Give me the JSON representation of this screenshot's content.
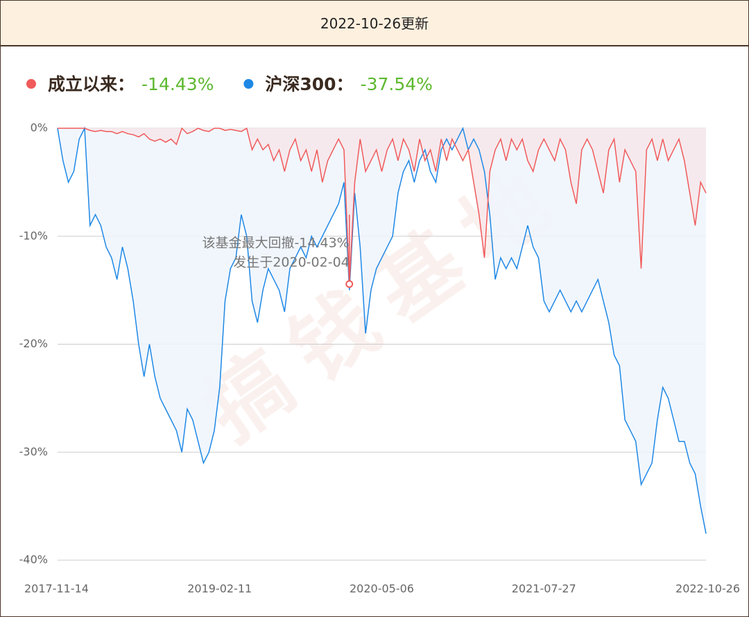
{
  "header": "2022-10-26更新",
  "chart_data": {
    "type": "line",
    "watermark": "搞钱基地",
    "categories": [
      "2017-11-14",
      null,
      null,
      null,
      null,
      null,
      null,
      null,
      null,
      null,
      null,
      null,
      null,
      null,
      null,
      null,
      null,
      null,
      null,
      null,
      null,
      null,
      null,
      null,
      null,
      null,
      null,
      null,
      null,
      null,
      "2019-02-11",
      null,
      null,
      null,
      null,
      null,
      null,
      null,
      null,
      null,
      null,
      null,
      null,
      null,
      null,
      null,
      null,
      null,
      null,
      null,
      null,
      null,
      null,
      null,
      null,
      null,
      null,
      null,
      null,
      null,
      "2020-05-06",
      null,
      null,
      null,
      null,
      null,
      null,
      null,
      null,
      null,
      null,
      null,
      null,
      null,
      null,
      null,
      null,
      null,
      null,
      null,
      null,
      null,
      null,
      null,
      null,
      null,
      null,
      null,
      null,
      null,
      "2021-07-27",
      null,
      null,
      null,
      null,
      null,
      null,
      null,
      null,
      null,
      null,
      null,
      null,
      null,
      null,
      null,
      null,
      null,
      null,
      null,
      null,
      null,
      null,
      null,
      null,
      null,
      null,
      null,
      null,
      null,
      "2022-10-26"
    ],
    "series": [
      {
        "name": "成立以来：",
        "summary": "-14.43%",
        "color": "#f05a5a",
        "fill": "#f7e6ea",
        "values": [
          0,
          0,
          0,
          0,
          0,
          0,
          -0.2,
          -0.3,
          -0.2,
          -0.3,
          -0.3,
          -0.5,
          -0.3,
          -0.5,
          -0.6,
          -0.8,
          -0.5,
          -1,
          -1.2,
          -1,
          -1.3,
          -1,
          -1.5,
          0,
          -0.5,
          -0.3,
          0,
          -0.2,
          -0.3,
          0,
          0,
          -0.2,
          -0.1,
          -0.2,
          -0.3,
          0,
          -2,
          -1,
          -2,
          -1.5,
          -3,
          -2,
          -4,
          -2,
          -1,
          -3,
          -2,
          -4,
          -2,
          -5,
          -3,
          -2,
          -1,
          -2,
          -14.43,
          -5,
          -1,
          -4,
          -3,
          -2,
          -4,
          -2,
          -1,
          -3,
          -1,
          -2,
          -4,
          -1,
          -3,
          -2,
          -4,
          -1,
          -3,
          -1,
          -2,
          -3,
          -2,
          -5,
          -8,
          -12,
          -4,
          -2,
          -1,
          -3,
          -1,
          -2,
          -1,
          -3,
          -4,
          -2,
          -1,
          -2,
          -3,
          -1,
          -2,
          -5,
          -7,
          -2,
          -1,
          -2,
          -4,
          -6,
          -2,
          -1,
          -5,
          -2,
          -3,
          -4,
          -13,
          -2,
          -1,
          -3,
          -1,
          -3,
          -2,
          -1,
          -3,
          -6,
          -9,
          -5,
          -6
        ]
      },
      {
        "name": "沪深300：",
        "summary": "-37.54%",
        "color": "#1e88e5",
        "fill": "#eef5fd",
        "values": [
          0,
          -3,
          -5,
          -4,
          -1,
          0,
          -9,
          -8,
          -9,
          -11,
          -12,
          -14,
          -11,
          -13,
          -16,
          -20,
          -23,
          -20,
          -23,
          -25,
          -26,
          -27,
          -28,
          -30,
          -26,
          -27,
          -29,
          -31,
          -30,
          -28,
          -24,
          -16,
          -13,
          -12,
          -8,
          -10,
          -16,
          -18,
          -15,
          -13,
          -14,
          -15,
          -17,
          -13,
          -12,
          -11,
          -12,
          -10,
          -11,
          -10,
          -9,
          -8,
          -7,
          -5,
          -15,
          -6,
          -11,
          -19,
          -15,
          -13,
          -12,
          -11,
          -10,
          -6,
          -4,
          -3,
          -5,
          -3,
          -2,
          -4,
          -5,
          -2,
          -1,
          -2,
          -1,
          0,
          -2,
          -1,
          -2,
          -4,
          -8,
          -14,
          -12,
          -13,
          -12,
          -13,
          -11,
          -9,
          -11,
          -12,
          -16,
          -17,
          -16,
          -15,
          -16,
          -17,
          -16,
          -17,
          -16,
          -15,
          -14,
          -16,
          -18,
          -21,
          -22,
          -27,
          -28,
          -29,
          -33,
          -32,
          -31,
          -27,
          -24,
          -25,
          -27,
          -29,
          -29,
          -31,
          -32,
          -35,
          -37.54
        ]
      }
    ],
    "annotation": {
      "lines": [
        "该基金最大回撤-14.43%",
        "发生于2020-02-04"
      ],
      "series": 0,
      "index": 54
    },
    "ylim": [
      -40,
      0
    ],
    "yticks": [
      {
        "value": 0,
        "label": "0%"
      },
      {
        "value": -10,
        "label": "-10%"
      },
      {
        "value": -20,
        "label": "-20%"
      },
      {
        "value": -30,
        "label": "-30%"
      },
      {
        "value": -40,
        "label": "-40%"
      }
    ],
    "grid": true
  }
}
